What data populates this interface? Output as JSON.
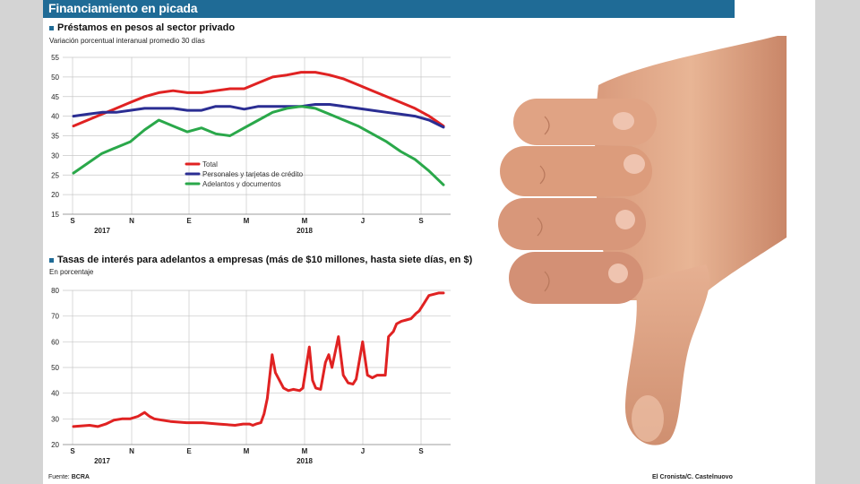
{
  "header": {
    "title": "Financiamiento en picada"
  },
  "chart_data": [
    {
      "type": "line",
      "title": "Préstamos en pesos al sector privado",
      "subtitle": "Variación porcentual interanual promedio 30 días",
      "xlabel": "",
      "ylabel": "",
      "x_ticks": [
        "S",
        "N",
        "E",
        "M",
        "M",
        "J",
        "S"
      ],
      "year_labels": [
        "2017",
        "2018"
      ],
      "yticks": [
        "15",
        "20",
        "25",
        "30",
        "35",
        "40",
        "45",
        "50",
        "55"
      ],
      "ylim": [
        15,
        55
      ],
      "grid": true,
      "legend_position": "middle",
      "x": [
        0,
        0.5,
        1,
        1.5,
        2,
        2.5,
        3,
        3.5,
        4,
        4.5,
        5,
        5.5,
        6,
        6.5,
        7,
        7.5,
        8,
        8.5,
        9,
        9.5,
        10,
        10.5,
        11,
        11.5,
        12,
        12.5,
        13
      ],
      "series": [
        {
          "name": "Total",
          "color": "#e02222",
          "values": [
            37.5,
            39,
            40.5,
            42,
            43.5,
            45,
            46,
            46.5,
            46,
            46,
            46.5,
            47,
            47,
            48.5,
            50,
            50.5,
            51.2,
            51.2,
            50.5,
            49.5,
            48,
            46.5,
            45,
            43.5,
            42,
            40,
            37.5
          ]
        },
        {
          "name": "Personales y tarjetas de crédito",
          "color": "#2b2e93",
          "values": [
            40,
            40.5,
            41,
            41,
            41.5,
            42,
            42,
            42,
            41.5,
            41.5,
            42.5,
            42.5,
            41.8,
            42.5,
            42.5,
            42.5,
            42.5,
            43,
            43,
            42.5,
            42,
            41.5,
            41,
            40.5,
            40,
            39,
            37.2
          ]
        },
        {
          "name": "Adelantos y documentos",
          "color": "#2aa84a",
          "values": [
            25.5,
            28,
            30.5,
            32,
            33.5,
            36.5,
            39,
            37.5,
            36,
            37,
            35.5,
            35,
            37,
            39,
            41,
            42,
            42.5,
            42,
            40.5,
            39,
            37.5,
            35.5,
            33.5,
            31,
            29,
            26,
            22.5
          ]
        }
      ]
    },
    {
      "type": "line",
      "title": "Tasas de interés para adelantos a empresas (más de $10 millones, hasta siete días, en $)",
      "subtitle": "En porcentaje",
      "xlabel": "",
      "ylabel": "",
      "x_ticks": [
        "S",
        "N",
        "E",
        "M",
        "M",
        "J",
        "S"
      ],
      "year_labels": [
        "2017",
        "2018"
      ],
      "yticks": [
        "20",
        "30",
        "40",
        "50",
        "60",
        "70",
        "80"
      ],
      "ylim": [
        20,
        80
      ],
      "grid": true,
      "x": [
        0,
        1,
        1.5,
        2,
        2.5,
        3,
        3.5,
        4,
        4.4,
        4.7,
        5,
        5.5,
        6,
        7,
        8,
        9,
        10,
        10.5,
        10.9,
        11.1,
        11.3,
        11.6,
        11.8,
        12,
        12.3,
        12.5,
        13,
        13.3,
        13.6,
        14,
        14.2,
        14.6,
        14.8,
        15,
        15.3,
        15.6,
        15.8,
        16,
        16.4,
        16.7,
        17,
        17.3,
        17.5,
        17.9,
        18.2,
        18.5,
        18.8,
        19,
        19.3,
        19.5,
        19.8,
        20,
        20.3,
        20.6,
        20.9,
        21.2,
        21.4,
        21.7,
        22,
        22.3,
        22.6,
        22.9
      ],
      "series": [
        {
          "name": "",
          "color": "#e02222",
          "values": [
            27,
            27.5,
            27,
            28,
            29.5,
            30,
            30,
            31,
            32.5,
            31,
            30,
            29.5,
            29,
            28.5,
            28.5,
            28,
            27.5,
            28,
            28,
            27.5,
            28,
            28.5,
            32,
            38,
            55,
            48,
            42,
            41,
            41.5,
            41,
            42,
            58,
            45,
            42,
            41.5,
            52,
            55,
            50,
            62,
            47,
            44,
            43.5,
            45.5,
            60,
            47,
            46,
            47,
            47,
            47,
            62,
            64,
            67,
            68,
            68.5,
            69,
            71,
            72,
            75,
            78,
            78.5,
            79,
            79
          ]
        }
      ]
    }
  ],
  "footer": {
    "source_label": "Fuente:",
    "source_value": "BCRA",
    "credit": "El Cronista/C. Castelnuovo"
  }
}
